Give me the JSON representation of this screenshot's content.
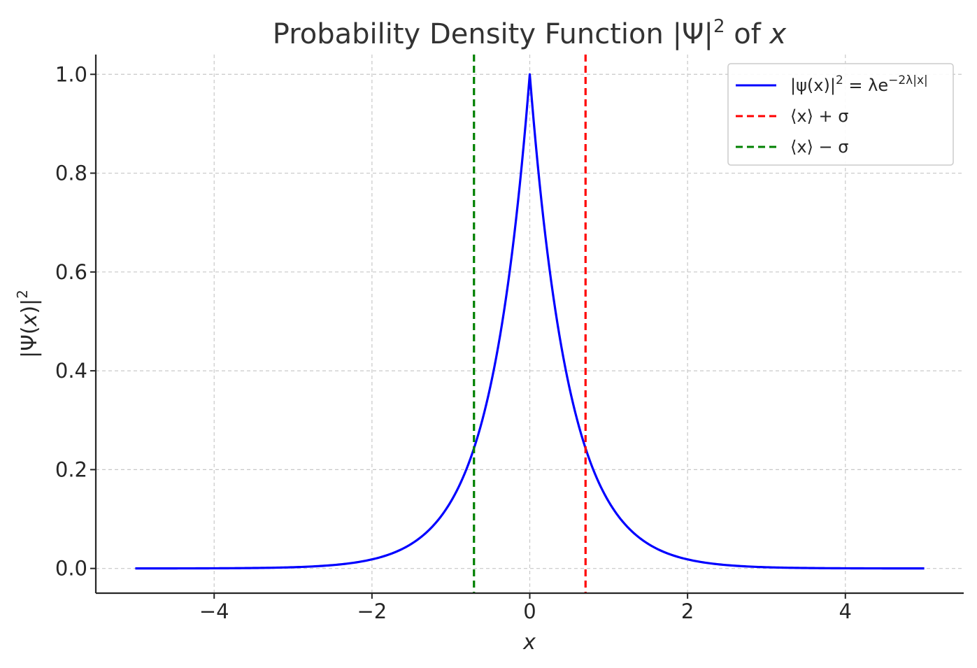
{
  "chart_data": {
    "type": "line",
    "title_parts": [
      "Probability Density Function |Ψ|",
      "2",
      " of ",
      "x"
    ],
    "xlabel": "x",
    "ylabel_parts": [
      "|Ψ(",
      "x",
      ")|",
      "2"
    ],
    "xlim": [
      -5.5,
      5.5
    ],
    "ylim": [
      -0.05,
      1.04
    ],
    "xticks": [
      -4,
      -2,
      0,
      2,
      4
    ],
    "xtick_labels": [
      "−4",
      "−2",
      "0",
      "2",
      "4"
    ],
    "yticks": [
      0.0,
      0.2,
      0.4,
      0.6,
      0.8,
      1.0
    ],
    "ytick_labels": [
      "0.0",
      "0.2",
      "0.4",
      "0.6",
      "0.8",
      "1.0"
    ],
    "grid": true,
    "legend_position": "top-right",
    "series": [
      {
        "name": "|ψ(x)|² = λe^(−2λ|x|)",
        "legend_parts": [
          "|ψ(x)|",
          "2",
          " = λe",
          "−2λ|x|"
        ],
        "color": "#0000ff",
        "style": "solid",
        "function": {
          "lambda": 1.0,
          "x_min": -5,
          "x_max": 5,
          "samples": 401
        }
      },
      {
        "name": "⟨x⟩ + σ",
        "legend_parts": [
          "⟨x⟩ + σ"
        ],
        "color": "#ff0000",
        "style": "dashed",
        "vline_x": 0.707
      },
      {
        "name": "⟨x⟩ − σ",
        "legend_parts": [
          "⟨x⟩ − σ"
        ],
        "color": "#008000",
        "style": "dashed",
        "vline_x": -0.707
      }
    ]
  }
}
